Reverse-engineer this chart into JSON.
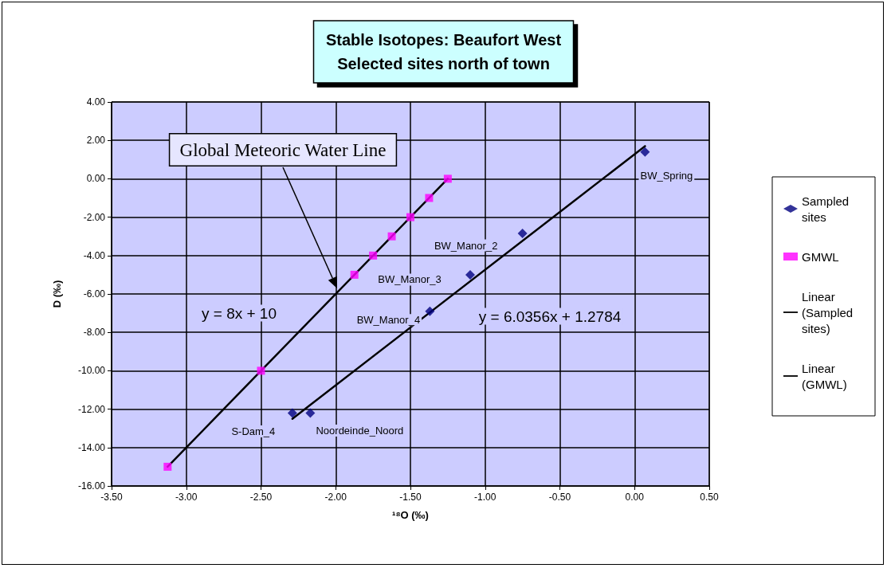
{
  "chart_data": {
    "type": "scatter",
    "title": "Stable Isotopes: Beaufort West\nSelected sites north of town",
    "xlabel": "¹⁸O (‰)",
    "ylabel": "D (‰)",
    "xlim": [
      -3.5,
      0.5
    ],
    "xticks": [
      {
        "value": -3.5,
        "label": "-3.50"
      },
      {
        "value": -3,
        "label": "-3.00"
      },
      {
        "value": -2.5,
        "label": "-2.50"
      },
      {
        "value": -2,
        "label": "-2.00"
      },
      {
        "value": -1.5,
        "label": "-1.50"
      },
      {
        "value": -1,
        "label": "-1.00"
      },
      {
        "value": -0.5,
        "label": "-0.50"
      },
      {
        "value": 0,
        "label": "0.00"
      },
      {
        "value": 0.5,
        "label": "0.50"
      }
    ],
    "ylim": [
      -16,
      4
    ],
    "yticks": [
      {
        "value": -16,
        "label": "-16.00"
      },
      {
        "value": -14,
        "label": "-14.00"
      },
      {
        "value": -12,
        "label": "-12.00"
      },
      {
        "value": -10,
        "label": "-10.00"
      },
      {
        "value": -8,
        "label": "-8.00"
      },
      {
        "value": -6,
        "label": "-6.00"
      },
      {
        "value": -4,
        "label": "-4.00"
      },
      {
        "value": -2,
        "label": "-2.00"
      },
      {
        "value": 0,
        "label": "0.00"
      },
      {
        "value": 2,
        "label": "2.00"
      },
      {
        "value": 4,
        "label": "4.00"
      }
    ],
    "grid": true,
    "legend": "right",
    "series": [
      {
        "name": "Sampled sites",
        "marker": "diamond",
        "color": "#000080",
        "x": [
          0.07,
          -0.75,
          -1.1,
          -1.37,
          -2.29,
          -2.17
        ],
        "values": [
          1.4,
          -2.85,
          -5.0,
          -6.9,
          -12.2,
          -12.2
        ]
      },
      {
        "name": "GMWL",
        "marker": "square",
        "color": "#ff00ff",
        "x": [
          -3.125,
          -2.5,
          -1.875,
          -1.75,
          -1.625,
          -1.5,
          -1.375,
          -1.25
        ],
        "values": [
          -15,
          -10,
          -5,
          -4,
          -3,
          -2,
          -1,
          0
        ]
      },
      {
        "name": "Linear (Sampled sites)",
        "type": "line",
        "marker": "none",
        "line_style": "solid",
        "color": "#000000",
        "x": [
          -2.29,
          0.07
        ],
        "values": [
          -12.5,
          1.7
        ]
      },
      {
        "name": "Linear (GMWL)",
        "type": "line",
        "marker": "none",
        "line_style": "solid",
        "color": "#000000",
        "x": [
          -3.125,
          -1.25
        ],
        "values": [
          -15,
          0
        ]
      }
    ],
    "annotations": [
      {
        "text": "BW_Spring",
        "x": 0.07,
        "y": 1.4
      },
      {
        "text": "BW_Manor_2",
        "x": -0.75,
        "y": -2.85
      },
      {
        "text": "BW_Manor_3",
        "x": -1.1,
        "y": -5.0
      },
      {
        "text": "BW_Manor_4",
        "x": -1.37,
        "y": -6.9
      },
      {
        "text": "S-Dam_4",
        "x": -2.29,
        "y": -12.2
      },
      {
        "text": "Noordeinde_Noord",
        "x": -2.17,
        "y": -12.2
      },
      "y = 8x + 10",
      "y = 6.0356x + 1.2784",
      "Global Meteoric Water Line"
    ]
  }
}
